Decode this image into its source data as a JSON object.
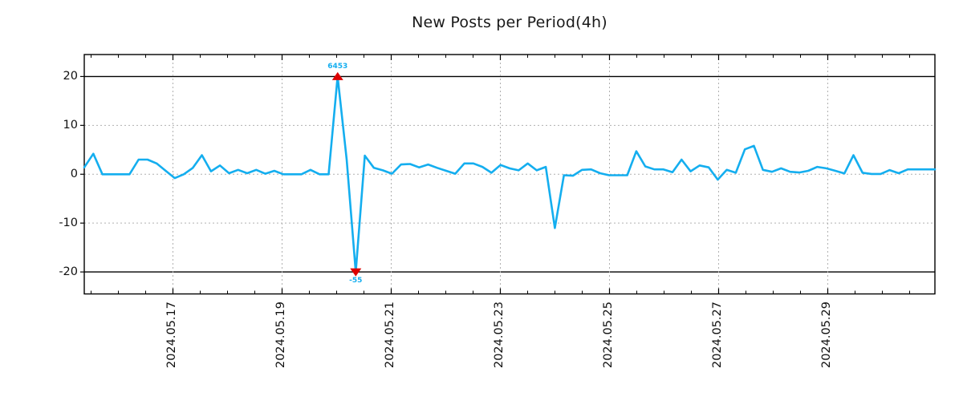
{
  "title": "New Posts per Period(4h)",
  "colors": {
    "line": "#14aeef",
    "marker": "#dd0000",
    "annotation": "#14aeef",
    "grid": "#b0b0b0",
    "clip_line": "#000000",
    "axis": "#000000",
    "text": "#111111",
    "background": "#ffffff"
  },
  "chart_data": {
    "type": "line",
    "title": "New Posts per Period(4h)",
    "period": "4h",
    "legend": null,
    "grid": "horizontal dashed at -10,0,10; vertical dashed at labeled dates; solid black at -20 and 20",
    "ylim": [
      -24.5,
      24.5
    ],
    "y_ticks": [
      20,
      10,
      0,
      -10,
      -20
    ],
    "clip": 20,
    "x_axis": {
      "labels": [
        "2024.05.17",
        "2024.05.19",
        "2024.05.21",
        "2024.05.23",
        "2024.05.25",
        "2024.05.27",
        "2024.05.29"
      ],
      "first_label_frac": 0.10424,
      "label_step_frac": 0.1283,
      "minor_per_major": 4
    },
    "values": [
      1.4,
      4.2,
      0,
      0,
      0,
      0,
      3.0,
      3.0,
      2.2,
      0.7,
      -0.8,
      0,
      1.3,
      3.9,
      0.6,
      1.8,
      0.2,
      0.9,
      0.2,
      0.9,
      0.1,
      0.7,
      0,
      0,
      0,
      0.9,
      0,
      0,
      6453,
      3,
      -55,
      3.8,
      1.3,
      0.8,
      0.1,
      2.0,
      2.1,
      1.4,
      2.0,
      1.3,
      0.7,
      0.1,
      2.2,
      2.2,
      1.5,
      0.3,
      1.9,
      1.2,
      0.8,
      2.2,
      0.8,
      1.5,
      -11,
      -0.2,
      -0.3,
      0.9,
      1.0,
      0.2,
      -0.2,
      -0.2,
      -0.2,
      4.7,
      1.6,
      1.0,
      1.0,
      0.4,
      3.0,
      0.6,
      1.8,
      1.4,
      -1.1,
      0.9,
      0.3,
      5.1,
      5.8,
      0.9,
      0.5,
      1.2,
      0.5,
      0.35,
      0.7,
      1.5,
      1.2,
      0.7,
      0.15,
      3.9,
      0.3,
      0.05,
      0.05,
      0.85,
      0.2,
      1.0,
      1.0,
      1.0,
      1.0
    ],
    "annotations": [
      {
        "text": "6453",
        "point_index": 28,
        "position": "above",
        "marker": "triangle-up"
      },
      {
        "text": "-55",
        "point_index": 30,
        "position": "below",
        "marker": "triangle-down"
      }
    ]
  }
}
